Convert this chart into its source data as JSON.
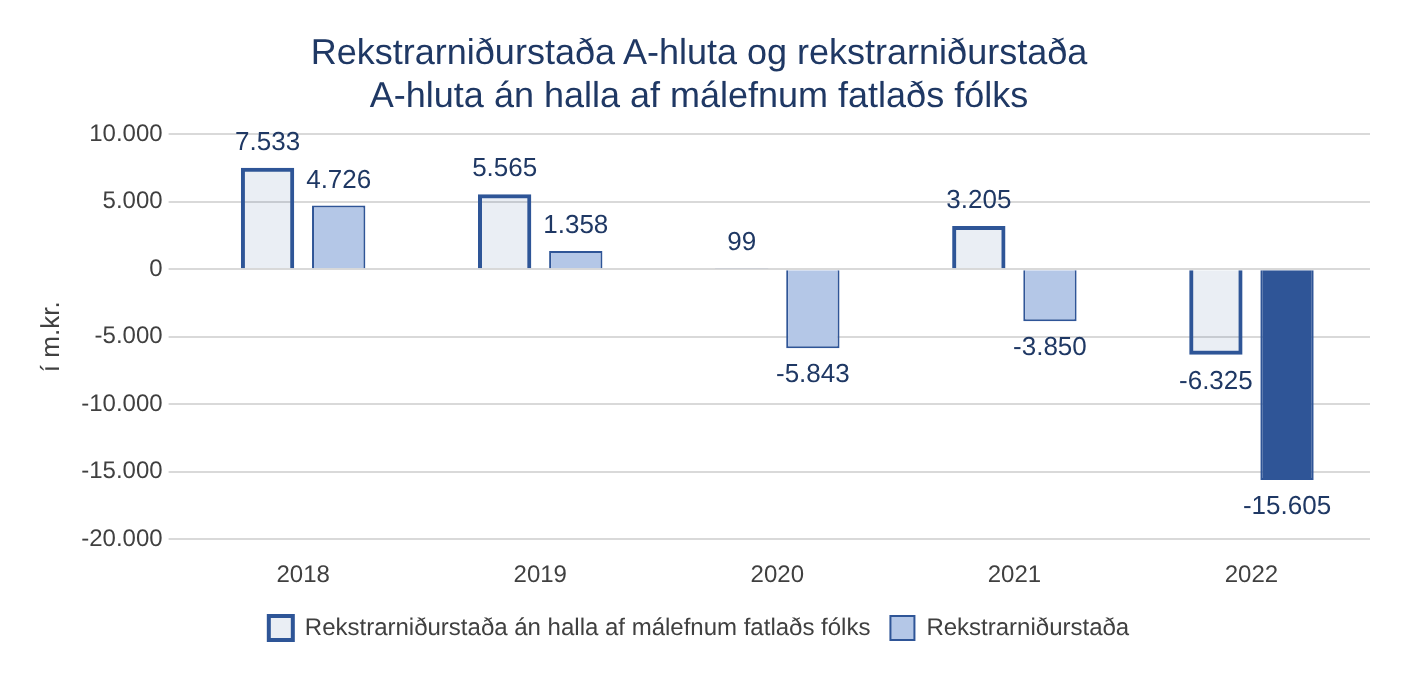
{
  "chart_data": {
    "type": "bar",
    "title": "Rekstrarniðurstaða A-hluta og rekstrarniðurstaða\nA-hluta án halla af málefnum fatlaðs fólks",
    "ylabel": "í m.kr.",
    "categories": [
      "2018",
      "2019",
      "2020",
      "2021",
      "2022"
    ],
    "series": [
      {
        "name": "Rekstrarniðurstaða án halla af málefnum fatlaðs fólks",
        "color": "#2e5597",
        "line_style": "dashed",
        "values": [
          7533,
          5565,
          99,
          3205,
          -6325
        ],
        "value_labels": [
          "7.533",
          "5.565",
          "99",
          "3.205",
          "-6.325"
        ]
      },
      {
        "name": "Rekstrarniðurstaða",
        "color": "#b4c7e7",
        "colors": [
          "#b4c7e7",
          "#b4c7e7",
          "#b4c7e7",
          "#b4c7e7",
          "#2f5597"
        ],
        "values": [
          4726,
          1358,
          -5843,
          -3850,
          -15605
        ],
        "value_labels": [
          "4.726",
          "1.358",
          "-5.843",
          "-3.850",
          "-15.605"
        ]
      }
    ],
    "ylim": [
      -20000,
      10000
    ],
    "yticks": [
      {
        "value": -20000,
        "label": "-20.000"
      },
      {
        "value": -15000,
        "label": "-15.000"
      },
      {
        "value": -10000,
        "label": "-10.000"
      },
      {
        "value": -5000,
        "label": "-5.000"
      },
      0,
      {
        "value": 5000,
        "label": "5.000"
      },
      {
        "value": 10000,
        "label": "10.000"
      }
    ],
    "grid": "y",
    "legend": "bottom"
  }
}
